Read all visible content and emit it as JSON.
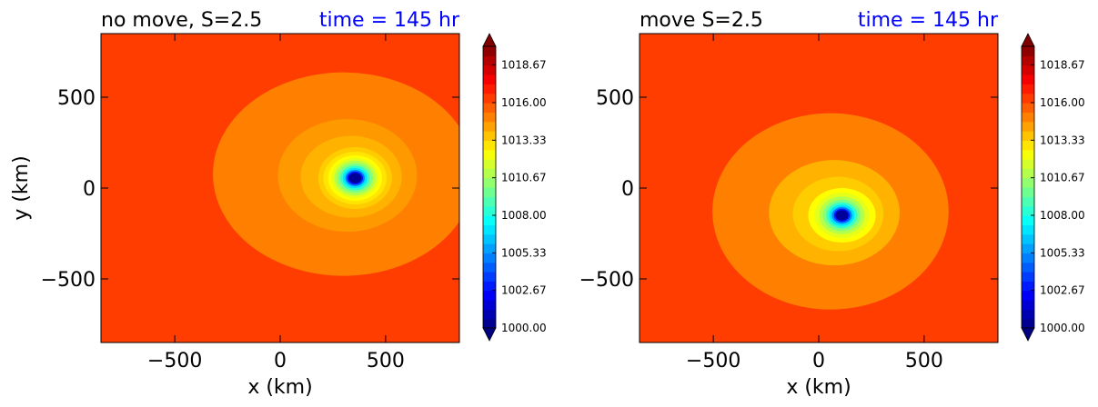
{
  "chart_data": [
    {
      "type": "heatmap",
      "title": "no move, S=2.5",
      "time_label": "time = 145 hr",
      "xlabel": "x (km)",
      "ylabel": "y (km)",
      "xlim": [
        -850,
        850
      ],
      "ylim": [
        -850,
        850
      ],
      "xticks": [
        {
          "value": -500,
          "label": "−500"
        },
        {
          "value": 0,
          "label": "0"
        },
        {
          "value": 500,
          "label": "500"
        }
      ],
      "yticks": [
        {
          "value": 500,
          "label": "500"
        },
        {
          "value": 0,
          "label": "0"
        },
        {
          "value": -500,
          "label": "−500"
        }
      ],
      "center": {
        "x": 355,
        "y": 55
      },
      "contour_levels": [
        {
          "level": 1015.0,
          "rx": 620,
          "ry": 560
        },
        {
          "level": 1014.5,
          "rx": 330,
          "ry": 310
        },
        {
          "level": 1014.0,
          "rx": 240,
          "ry": 225
        },
        {
          "level": 1013.5,
          "rx": 175,
          "ry": 170
        },
        {
          "level": 1013.0,
          "rx": 150,
          "ry": 145
        },
        {
          "level": 1012.5,
          "rx": 128,
          "ry": 125
        },
        {
          "level": 1012.0,
          "rx": 112,
          "ry": 110
        },
        {
          "level": 1011.0,
          "rx": 98,
          "ry": 96
        },
        {
          "level": 1010.0,
          "rx": 84,
          "ry": 82
        },
        {
          "level": 1008.5,
          "rx": 70,
          "ry": 68
        },
        {
          "level": 1007.0,
          "rx": 58,
          "ry": 56
        },
        {
          "level": 1005.0,
          "rx": 46,
          "ry": 45
        },
        {
          "level": 1003.0,
          "rx": 38,
          "ry": 36
        },
        {
          "level": 1000.5,
          "rx": 30,
          "ry": 28
        }
      ]
    },
    {
      "type": "heatmap",
      "title": "move S=2.5",
      "time_label": "time = 145 hr",
      "xlabel": "x (km)",
      "ylabel": "",
      "xlim": [
        -850,
        850
      ],
      "ylim": [
        -850,
        850
      ],
      "xticks": [
        {
          "value": -500,
          "label": "−500"
        },
        {
          "value": 0,
          "label": "0"
        },
        {
          "value": 500,
          "label": "500"
        }
      ],
      "yticks": [
        {
          "value": 500,
          "label": "500"
        },
        {
          "value": 0,
          "label": "0"
        },
        {
          "value": -500,
          "label": "−500"
        }
      ],
      "center": {
        "x": 110,
        "y": -150
      },
      "contour_levels": [
        {
          "level": 1015.0,
          "rx": 560,
          "ry": 540
        },
        {
          "level": 1014.0,
          "rx": 310,
          "ry": 290
        },
        {
          "level": 1013.5,
          "rx": 215,
          "ry": 205
        },
        {
          "level": 1012.5,
          "rx": 160,
          "ry": 150
        },
        {
          "level": 1012.0,
          "rx": 130,
          "ry": 125
        },
        {
          "level": 1011.0,
          "rx": 108,
          "ry": 104
        },
        {
          "level": 1010.0,
          "rx": 90,
          "ry": 87
        },
        {
          "level": 1008.5,
          "rx": 74,
          "ry": 72
        },
        {
          "level": 1007.0,
          "rx": 60,
          "ry": 58
        },
        {
          "level": 1005.0,
          "rx": 48,
          "ry": 46
        },
        {
          "level": 1003.0,
          "rx": 38,
          "ry": 36
        },
        {
          "level": 1000.5,
          "rx": 30,
          "ry": 28
        }
      ]
    }
  ],
  "colorbar": {
    "min": 1000.0,
    "max": 1020.0,
    "ticks": [
      {
        "value": 1000.0,
        "label": "1000.00"
      },
      {
        "value": 1002.667,
        "label": "1002.67"
      },
      {
        "value": 1005.333,
        "label": "1005.33"
      },
      {
        "value": 1008.0,
        "label": "1008.00"
      },
      {
        "value": 1010.667,
        "label": "1010.67"
      },
      {
        "value": 1013.333,
        "label": "1013.33"
      },
      {
        "value": 1016.0,
        "label": "1016.00"
      },
      {
        "value": 1018.667,
        "label": "1018.67"
      }
    ]
  },
  "colors": {
    "title": "#000000",
    "time_label": "#0000ff",
    "background_level": 1016.3
  }
}
